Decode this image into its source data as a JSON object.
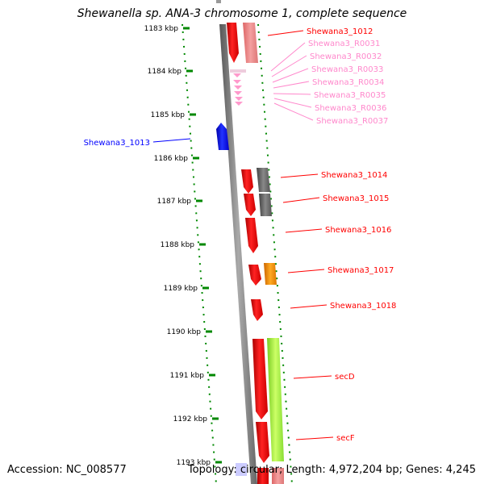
{
  "title": "Shewanella sp. ANA-3 chromosome 1, complete sequence",
  "footer": {
    "accession": "Accession: NC_008577",
    "summary": "Topology: circular; Length: 4,972,204 bp; Genes: 4,245"
  },
  "colors": {
    "cds_forward": "#ff0000",
    "cds_reverse": "#0000ff",
    "rna": "#ff88cc",
    "cog_gray": "#666666",
    "cog_orange": "#ff8800",
    "cog_green": "#99ee33",
    "cog_pink": "#ee8888",
    "scale_green": "#008800"
  },
  "ruler_ticks": [
    "1183 kbp",
    "1184 kbp",
    "1185 kbp",
    "1186 kbp",
    "1187 kbp",
    "1188 kbp",
    "1189 kbp",
    "1190 kbp",
    "1191 kbp",
    "1192 kbp",
    "1193 kbp"
  ],
  "gene_labels": [
    {
      "text": "Shewana3_1012",
      "type": "cds_forward"
    },
    {
      "text": "Shewana3_R0031",
      "type": "rna"
    },
    {
      "text": "Shewana3_R0032",
      "type": "rna"
    },
    {
      "text": "Shewana3_R0033",
      "type": "rna"
    },
    {
      "text": "Shewana3_R0034",
      "type": "rna"
    },
    {
      "text": "Shewana3_R0035",
      "type": "rna"
    },
    {
      "text": "Shewana3_R0036",
      "type": "rna"
    },
    {
      "text": "Shewana3_R0037",
      "type": "rna"
    },
    {
      "text": "Shewana3_1013",
      "type": "cds_reverse"
    },
    {
      "text": "Shewana3_1014",
      "type": "cds_forward"
    },
    {
      "text": "Shewana3_1015",
      "type": "cds_forward"
    },
    {
      "text": "Shewana3_1016",
      "type": "cds_forward"
    },
    {
      "text": "Shewana3_1017",
      "type": "cds_forward"
    },
    {
      "text": "Shewana3_1018",
      "type": "cds_forward"
    },
    {
      "text": "secD",
      "type": "cds_forward"
    },
    {
      "text": "secF",
      "type": "cds_forward"
    }
  ]
}
